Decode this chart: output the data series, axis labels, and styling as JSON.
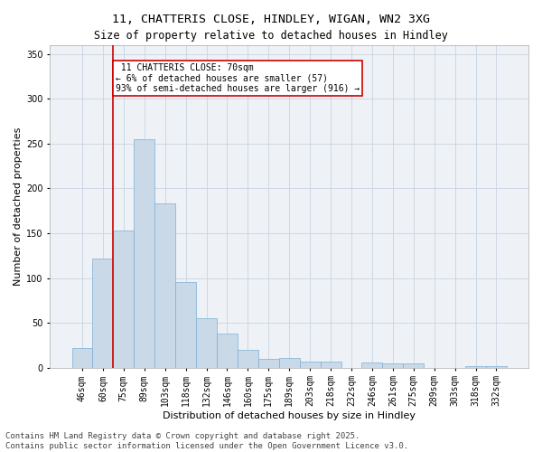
{
  "title_line1": "11, CHATTERIS CLOSE, HINDLEY, WIGAN, WN2 3XG",
  "title_line2": "Size of property relative to detached houses in Hindley",
  "xlabel": "Distribution of detached houses by size in Hindley",
  "ylabel": "Number of detached properties",
  "categories": [
    "46sqm",
    "60sqm",
    "75sqm",
    "89sqm",
    "103sqm",
    "118sqm",
    "132sqm",
    "146sqm",
    "160sqm",
    "175sqm",
    "189sqm",
    "203sqm",
    "218sqm",
    "232sqm",
    "246sqm",
    "261sqm",
    "275sqm",
    "289sqm",
    "303sqm",
    "318sqm",
    "332sqm"
  ],
  "values": [
    22,
    122,
    153,
    255,
    183,
    95,
    55,
    38,
    20,
    10,
    11,
    7,
    7,
    0,
    6,
    5,
    5,
    0,
    0,
    2,
    2
  ],
  "bar_color": "#c9d9e8",
  "bar_edge_color": "#7bafd4",
  "bar_width": 1.0,
  "ref_line_x": 1.5,
  "ref_line_label": "11 CHATTERIS CLOSE: 70sqm",
  "ref_line_pct_smaller": "6% of detached houses are smaller (57)",
  "ref_line_pct_larger": "93% of semi-detached houses are larger (916)",
  "ref_line_color": "#cc0000",
  "annotation_box_color": "#cc0000",
  "ylim": [
    0,
    360
  ],
  "yticks": [
    0,
    50,
    100,
    150,
    200,
    250,
    300,
    350
  ],
  "grid_color": "#c8d4e0",
  "background_color": "#eef2f7",
  "footer_line1": "Contains HM Land Registry data © Crown copyright and database right 2025.",
  "footer_line2": "Contains public sector information licensed under the Open Government Licence v3.0.",
  "title_fontsize": 9.5,
  "subtitle_fontsize": 8.5,
  "axis_label_fontsize": 8,
  "tick_fontsize": 7,
  "annotation_fontsize": 7,
  "footer_fontsize": 6.5
}
